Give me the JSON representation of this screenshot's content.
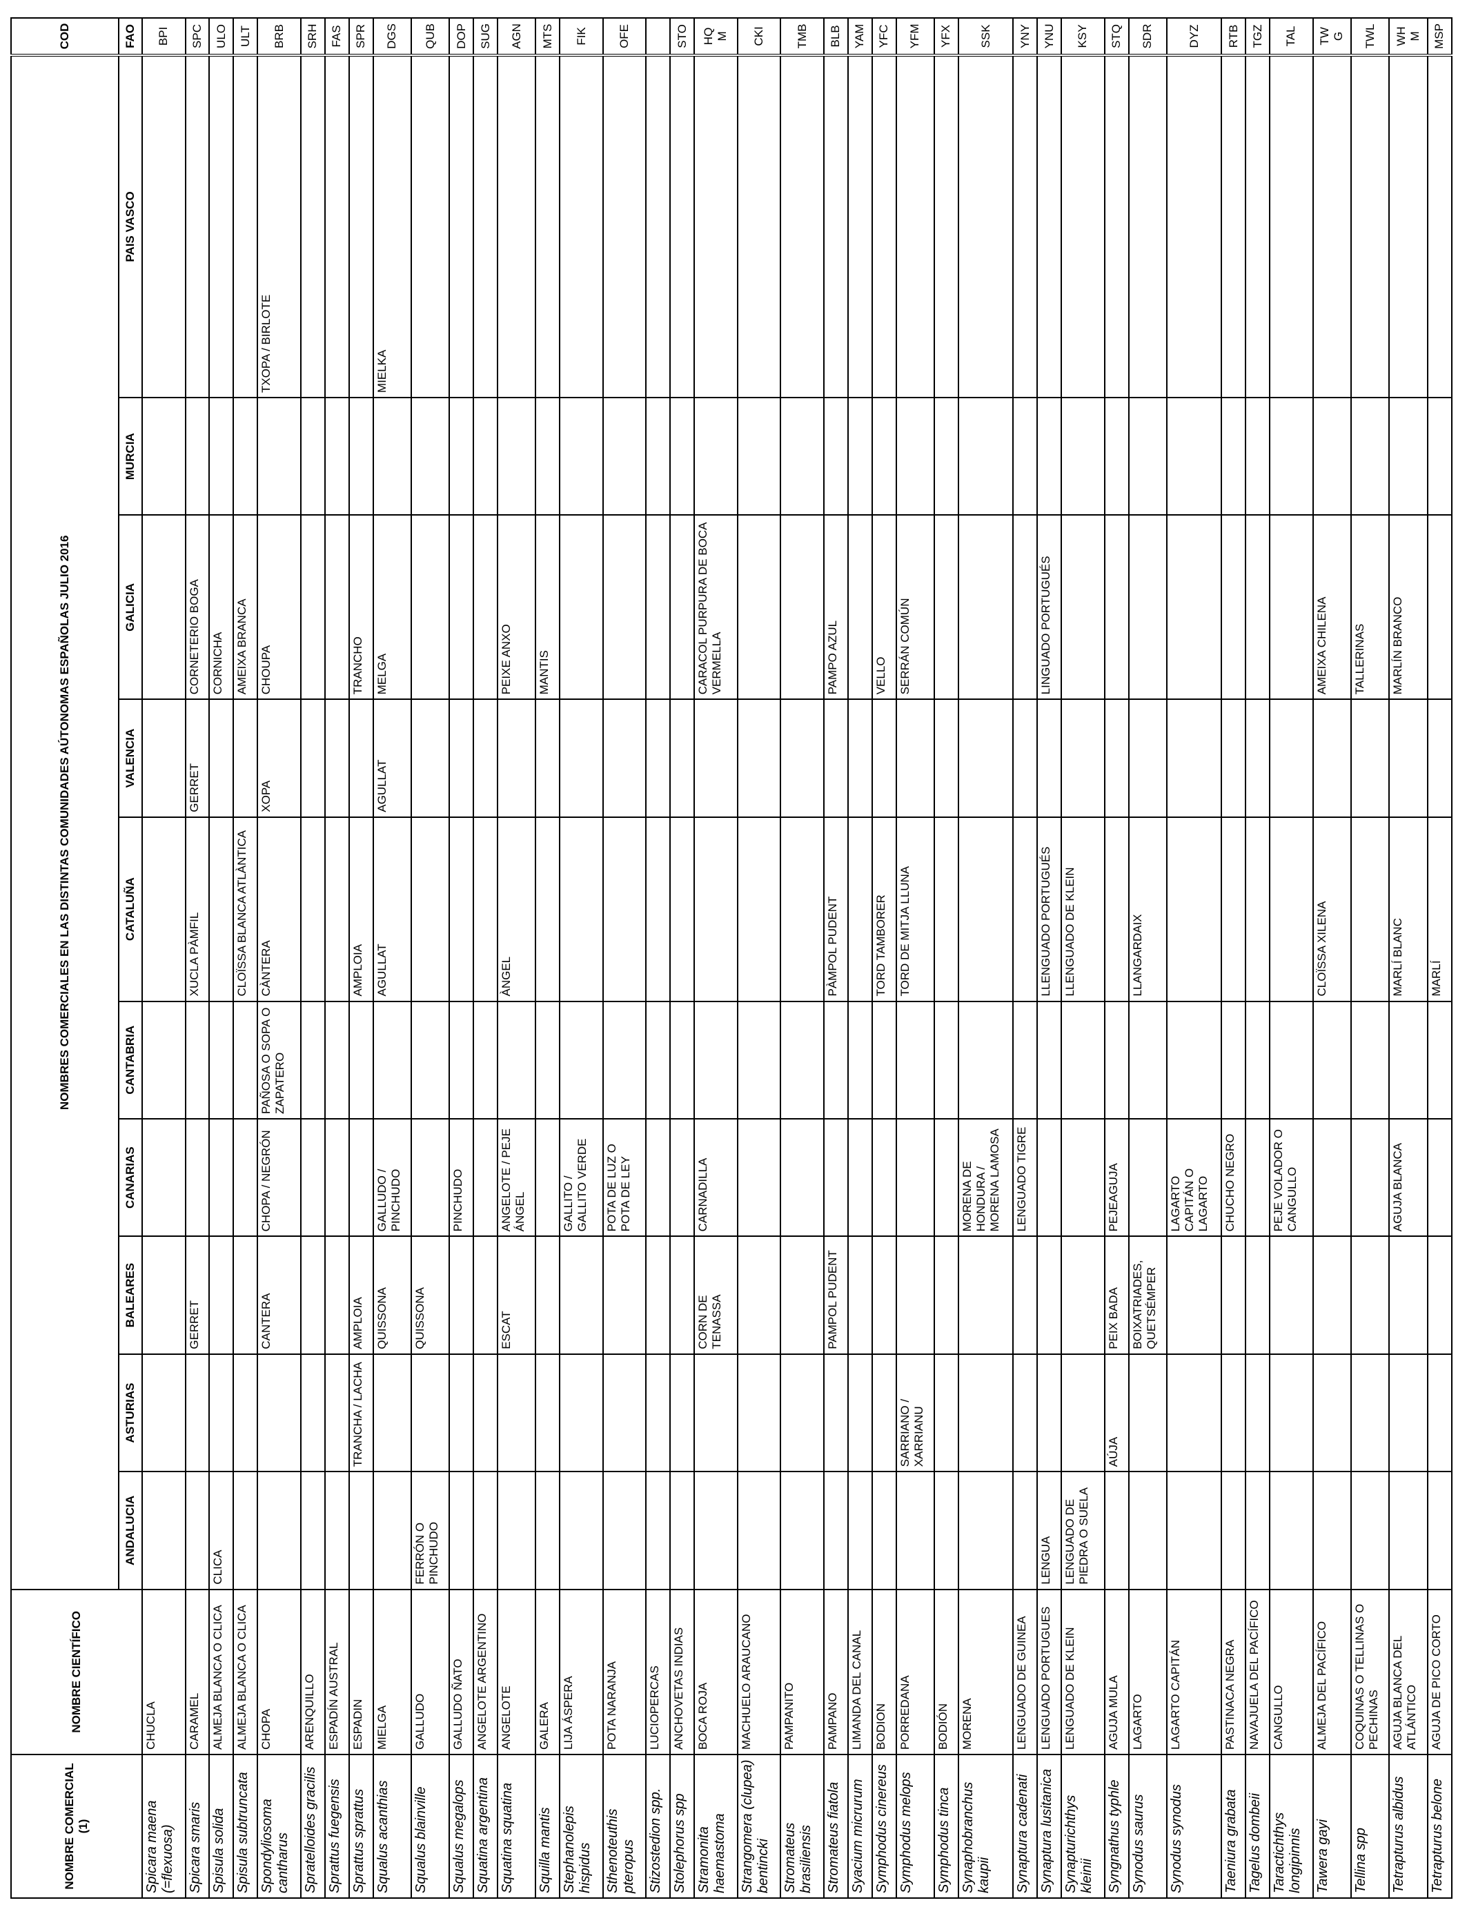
{
  "headers": {
    "comercial": "NOMBRE COMERCIAL (1)",
    "cientifico": "NOMBRE CIENTÍFICO",
    "group": "NOMBRES COMERCIALES EN LAS DISTINTAS COMUNIDADES AÚTONOMAS ESPAÑOLAS JULIO 2016",
    "regions": [
      "ANDALUCIA",
      "ASTURIAS",
      "BALEARES",
      "CANARIAS",
      "CANTABRIA",
      "CATALUÑA",
      "VALENCIA",
      "GALICIA",
      "MURCIA",
      "PAIS VASCO"
    ],
    "cod": "COD",
    "fao": "FAO"
  },
  "rows": [
    {
      "sci": "Spicara maena (=flexuosa)",
      "com": "CHUCLA",
      "regions": [
        "",
        "",
        "",
        "",
        "",
        "",
        "",
        "",
        "",
        ""
      ],
      "fao": "BPI"
    },
    {
      "sci": "Spicara smaris",
      "com": "CARAMEL",
      "regions": [
        "",
        "",
        "GERRET",
        "",
        "",
        "XUCLA PÀMFIL",
        "GERRET",
        "CORNETERIO BOGA",
        "",
        ""
      ],
      "fao": "SPC"
    },
    {
      "sci": "Spisula solida",
      "com": "ALMEJA BLANCA O CLICA",
      "regions": [
        "CLICA",
        "",
        "",
        "",
        "",
        "",
        "",
        "CORNICHA",
        "",
        ""
      ],
      "fao": "ULO"
    },
    {
      "sci": "Spisula subtruncata",
      "com": "ALMEJA BLANCA O CLICA",
      "regions": [
        "",
        "",
        "",
        "",
        "",
        "CLOÏSSA BLANCA ATLÀNTICA",
        "",
        "AMEIXA BRANCA",
        "",
        ""
      ],
      "fao": "ULT"
    },
    {
      "sci": "Spondyliosoma cantharus",
      "com": "CHOPA",
      "regions": [
        "",
        "",
        "CANTERA",
        "CHOPA / NEGRÓN",
        "PAÑOSA O SOPA O ZAPATERO",
        "CÀNTERA",
        "XOPA",
        "CHOUPA",
        "",
        "TXOPA / BIRLOTE"
      ],
      "fao": "BRB"
    },
    {
      "sci": "Spratelloides gracilis",
      "com": "ARENQUILLO",
      "regions": [
        "",
        "",
        "",
        "",
        "",
        "",
        "",
        "",
        "",
        ""
      ],
      "fao": "SRH"
    },
    {
      "sci": "Sprattus fuegensis",
      "com": "ESPADÍN AUSTRAL",
      "regions": [
        "",
        "",
        "",
        "",
        "",
        "",
        "",
        "",
        "",
        ""
      ],
      "fao": "FAS"
    },
    {
      "sci": "Sprattus sprattus",
      "com": "ESPADIN",
      "regions": [
        "",
        "TRANCHA / LACHA",
        "AMPLOIA",
        "",
        "",
        "AMPLOIA",
        "",
        "TRANCHO",
        "",
        ""
      ],
      "fao": "SPR"
    },
    {
      "sci": "Squalus acanthias",
      "com": "MIELGA",
      "regions": [
        "",
        "",
        "QUISSONA",
        "GALLUDO / PINCHUDO",
        "",
        "AGULLAT",
        "AGULLAT",
        "MELGA",
        "",
        "MIELKA"
      ],
      "fao": "DGS"
    },
    {
      "sci": "Squalus blainville",
      "com": "GALLUDO",
      "regions": [
        "FERRÓN O PINCHUDO",
        "",
        "QUISSONA",
        "",
        "",
        "",
        "",
        "",
        "",
        ""
      ],
      "fao": "QUB"
    },
    {
      "sci": "Squalus megalops",
      "com": "GALLUDO ÑATO",
      "regions": [
        "",
        "",
        "",
        "PINCHUDO",
        "",
        "",
        "",
        "",
        "",
        ""
      ],
      "fao": "DOP"
    },
    {
      "sci": "Squatina argentina",
      "com": "ANGELOTE ARGENTINO",
      "regions": [
        "",
        "",
        "",
        "",
        "",
        "",
        "",
        "",
        "",
        ""
      ],
      "fao": "SUG"
    },
    {
      "sci": "Squatina squatina",
      "com": "ANGELOTE",
      "regions": [
        "",
        "",
        "ESCAT",
        "ANGELOTE / PEJE ÁNGEL",
        "",
        "ÀNGEL",
        "",
        "PEIXE ANXO",
        "",
        ""
      ],
      "fao": "AGN"
    },
    {
      "sci": "Squilla mantis",
      "com": "GALERA",
      "regions": [
        "",
        "",
        "",
        "",
        "",
        "",
        "",
        "MANTIS",
        "",
        ""
      ],
      "fao": "MTS"
    },
    {
      "sci": "Stephanolepis hispidus",
      "com": "LIJA ÁSPERA",
      "regions": [
        "",
        "",
        "",
        "GALLITO / GALLITO VERDE",
        "",
        "",
        "",
        "",
        "",
        ""
      ],
      "fao": "FIK"
    },
    {
      "sci": "Sthenoteuthis pteropus",
      "com": "POTA NARANJA",
      "regions": [
        "",
        "",
        "",
        "POTA DE LUZ O POTA DE LEY",
        "",
        "",
        "",
        "",
        "",
        ""
      ],
      "fao": "OFE"
    },
    {
      "sci": "Stizostedion  spp.",
      "com": "LUCIOPERCAS",
      "regions": [
        "",
        "",
        "",
        "",
        "",
        "",
        "",
        "",
        "",
        ""
      ],
      "fao": ""
    },
    {
      "sci": "Stolephorus  spp",
      "com": "ANCHOVETAS INDIAS",
      "regions": [
        "",
        "",
        "",
        "",
        "",
        "",
        "",
        "",
        "",
        ""
      ],
      "fao": "STO"
    },
    {
      "sci": "Stramonita haemastoma",
      "com": "BOCA ROJA",
      "regions": [
        "",
        "",
        "CORN DE TENASSA",
        "CARNADILLA",
        "",
        "",
        "",
        "CARACOL PURPURA DE BOCA VERMELLA",
        "",
        ""
      ],
      "fao": "HQM"
    },
    {
      "sci": "Strangomera (clupea) bentincki",
      "com": "MACHUELO ARAUCANO",
      "regions": [
        "",
        "",
        "",
        "",
        "",
        "",
        "",
        "",
        "",
        ""
      ],
      "fao": "CKI"
    },
    {
      "sci": "Stromateus brasiliensis",
      "com": "PAMPANITO",
      "regions": [
        "",
        "",
        "",
        "",
        "",
        "",
        "",
        "",
        "",
        ""
      ],
      "fao": "TMB"
    },
    {
      "sci": "Stromateus fiatola",
      "com": "PAMPANO",
      "regions": [
        "",
        "",
        "PAMPOL PUDENT",
        "",
        "",
        "PÀMPOL PUDENT",
        "",
        "PAMPO AZUL",
        "",
        ""
      ],
      "fao": "BLB"
    },
    {
      "sci": "Syacium micrurum",
      "com": "LIMANDA DEL CANAL",
      "regions": [
        "",
        "",
        "",
        "",
        "",
        "",
        "",
        "",
        "",
        ""
      ],
      "fao": "YAM"
    },
    {
      "sci": "Symphodus cinereus",
      "com": "BODION",
      "regions": [
        "",
        "",
        "",
        "",
        "",
        "TORD TAMBORER",
        "",
        "VELLO",
        "",
        ""
      ],
      "fao": "YFC"
    },
    {
      "sci": "Symphodus melops",
      "com": "PORREDANA",
      "regions": [
        "",
        "SARRIANO / XARRIANU",
        "",
        "",
        "",
        "TORD DE MITJA LLUNA",
        "",
        "SERRÁN COMÚN",
        "",
        ""
      ],
      "fao": "YFM"
    },
    {
      "sci": "Symphodus tinca",
      "com": "BODIÓN",
      "regions": [
        "",
        "",
        "",
        "",
        "",
        "",
        "",
        "",
        "",
        ""
      ],
      "fao": "YFX"
    },
    {
      "sci": "Synaphobranchus kaupii",
      "com": "MORENA",
      "regions": [
        "",
        "",
        "",
        "MORENA DE HONDURA / MORENA LAMOSA",
        "",
        "",
        "",
        "",
        "",
        ""
      ],
      "fao": "SSK"
    },
    {
      "sci": "Synaptura cadenati",
      "com": "LENGUADO DE GUINEA",
      "regions": [
        "",
        "",
        "",
        "LENGUADO TIGRE",
        "",
        "",
        "",
        "",
        "",
        ""
      ],
      "fao": "YNY"
    },
    {
      "sci": "Synaptura lusitanica",
      "com": "LENGUADO PORTUGUES",
      "regions": [
        "LENGUA",
        "",
        "",
        "",
        "",
        "LLENGUADO PORTUGUÉS",
        "",
        "LINGUADO PORTUGUÉS",
        "",
        ""
      ],
      "fao": "YNU"
    },
    {
      "sci": "Synapturichthys kleinii",
      "com": "LENGUADO DE KLEIN",
      "regions": [
        "LENGUADO DE PIEDRA O SUELA",
        "",
        "",
        "",
        "",
        "LLENGUADO DE KLEIN",
        "",
        "",
        "",
        ""
      ],
      "fao": "KSY"
    },
    {
      "sci": "Syngnathus typhle",
      "com": "AGUJA MULA",
      "regions": [
        "",
        "AÚJA",
        "PEIX BADA",
        "PEJEAGUJA",
        "",
        "",
        "",
        "",
        "",
        ""
      ],
      "fao": "STQ"
    },
    {
      "sci": "Synodus saurus",
      "com": "LAGARTO",
      "regions": [
        "",
        "",
        "BOIXATRIADES, QUETSÉMPER",
        "",
        "",
        "LLANGARDAIX",
        "",
        "",
        "",
        ""
      ],
      "fao": "SDR"
    },
    {
      "sci": "Synodus synodus",
      "com": "LAGARTO CAPITÁN",
      "regions": [
        "",
        "",
        "",
        "LAGARTO CAPITÁN O LAGARTO",
        "",
        "",
        "",
        "",
        "",
        ""
      ],
      "fao": "DYZ"
    },
    {
      "sci": "Taeniura grabata",
      "com": "PASTINACA NEGRA",
      "regions": [
        "",
        "",
        "",
        "CHUCHO NEGRO",
        "",
        "",
        "",
        "",
        "",
        ""
      ],
      "fao": "RTB"
    },
    {
      "sci": "Tagelus dombeii",
      "com": "NAVAJUELA DEL PACÍFICO",
      "regions": [
        "",
        "",
        "",
        "",
        "",
        "",
        "",
        "",
        "",
        ""
      ],
      "fao": "TGZ"
    },
    {
      "sci": "Taractichthys longipinnis",
      "com": "CANGULLO",
      "regions": [
        "",
        "",
        "",
        "PEJE VOLADOR O CANGULLO",
        "",
        "",
        "",
        "",
        "",
        ""
      ],
      "fao": "TAL"
    },
    {
      "sci": "Tawera gayi",
      "com": "ALMEJA DEL PACÍFICO",
      "regions": [
        "",
        "",
        "",
        "",
        "",
        "CLOÏSSA XILENA",
        "",
        "AMEIXA CHILENA",
        "",
        ""
      ],
      "fao": "TWG"
    },
    {
      "sci": "Tellina  spp",
      "com": "COQUINAS O TELLINAS O PECHINAS",
      "regions": [
        "",
        "",
        "",
        "",
        "",
        "",
        "",
        "TALLERINAS",
        "",
        ""
      ],
      "fao": "TWL"
    },
    {
      "sci": "Tetrapturus albidus",
      "com": "AGUJA BLANCA DEL ATLÁNTICO",
      "regions": [
        "",
        "",
        "",
        "AGUJA BLANCA",
        "",
        "MARLÍ BLANC",
        "",
        "MARLÍN BRANCO",
        "",
        ""
      ],
      "fao": "WHM"
    },
    {
      "sci": "Tetrapturus belone",
      "com": "AGUJA DE PICO CORTO",
      "regions": [
        "",
        "",
        "",
        "",
        "",
        "MARLÍ",
        "",
        "",
        "",
        ""
      ],
      "fao": "MSP"
    }
  ]
}
